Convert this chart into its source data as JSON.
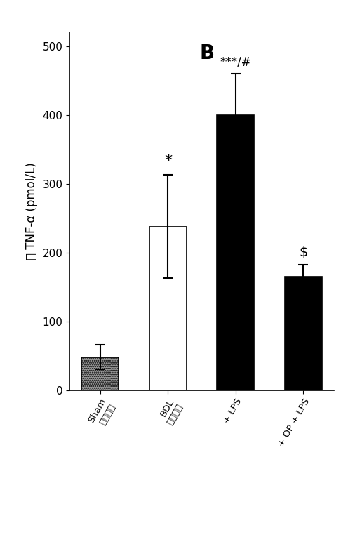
{
  "categories": [
    "Sham\n(対照)",
    "BDL\n(対照)",
    "+ LPS",
    "+ OP + LPS"
  ],
  "values": [
    48,
    238,
    400,
    165
  ],
  "errors": [
    18,
    75,
    60,
    18
  ],
  "bar_colors": [
    "#999999",
    "#ffffff",
    "#000000",
    "#000000"
  ],
  "bar_edgecolors": [
    "#000000",
    "#000000",
    "#000000",
    "#000000"
  ],
  "bar_hatches": [
    "......",
    "",
    "",
    ""
  ],
  "ylabel": "脳 TNF-α (pmol/L)",
  "panel_label": "B",
  "ylim": [
    0,
    520
  ],
  "yticks": [
    0,
    100,
    200,
    300,
    400,
    500
  ],
  "label_fontsize": 12,
  "tick_fontsize": 11
}
